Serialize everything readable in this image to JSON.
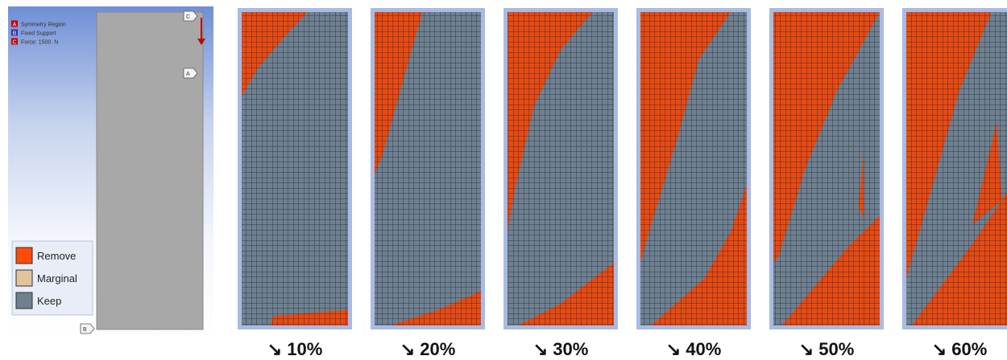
{
  "left_panel": {
    "annotations": [
      {
        "letter": "A",
        "text": "Symmetry Region"
      },
      {
        "letter": "B",
        "text": "Fixed Support"
      },
      {
        "letter": "C",
        "text": "Force: 1500. N"
      }
    ],
    "flags": [
      "C",
      "A",
      "B"
    ],
    "legend": [
      "Remove",
      "Marginal",
      "Keep"
    ]
  },
  "panels": [
    {
      "label": "↘ 10%"
    },
    {
      "label": "↘ 20%"
    },
    {
      "label": "↘ 30%"
    },
    {
      "label": "↘ 40%"
    },
    {
      "label": "↘ 50%"
    },
    {
      "label": "↘ 60%"
    }
  ]
}
